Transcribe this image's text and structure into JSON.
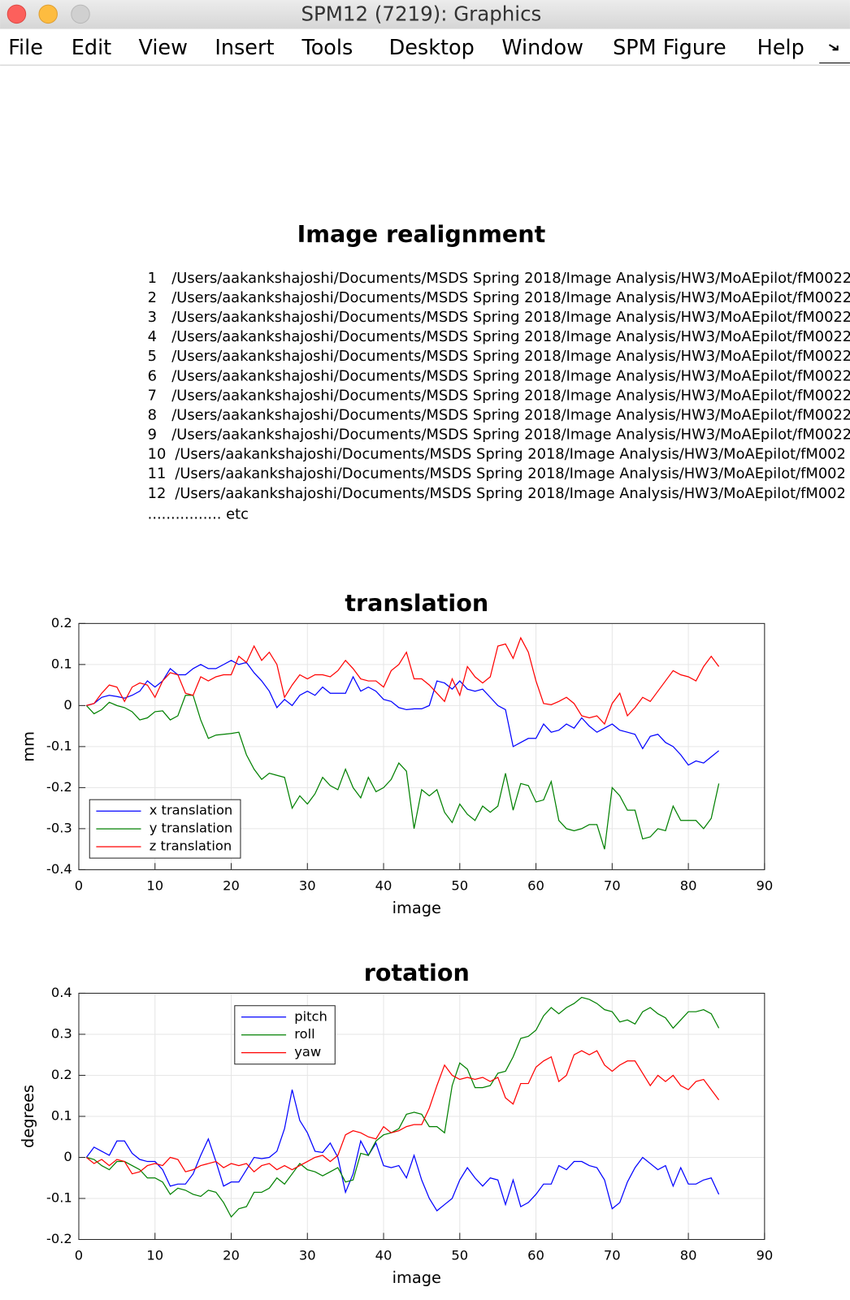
{
  "window": {
    "title": "SPM12 (7219): Graphics"
  },
  "menu": [
    "File",
    "Edit",
    "View",
    "Insert",
    "Tools",
    "Desktop",
    "Window",
    "SPM Figure",
    "Help"
  ],
  "report": {
    "title": "Image realignment",
    "files": [
      {
        "index": 1,
        "path": "/Users/aakankshajoshi/Documents/MSDS Spring 2018/Image Analysis/HW3/MoAEpilot/fM0022"
      },
      {
        "index": 2,
        "path": "/Users/aakankshajoshi/Documents/MSDS Spring 2018/Image Analysis/HW3/MoAEpilot/fM0022"
      },
      {
        "index": 3,
        "path": "/Users/aakankshajoshi/Documents/MSDS Spring 2018/Image Analysis/HW3/MoAEpilot/fM0022"
      },
      {
        "index": 4,
        "path": "/Users/aakankshajoshi/Documents/MSDS Spring 2018/Image Analysis/HW3/MoAEpilot/fM0022"
      },
      {
        "index": 5,
        "path": "/Users/aakankshajoshi/Documents/MSDS Spring 2018/Image Analysis/HW3/MoAEpilot/fM0022"
      },
      {
        "index": 6,
        "path": "/Users/aakankshajoshi/Documents/MSDS Spring 2018/Image Analysis/HW3/MoAEpilot/fM0022"
      },
      {
        "index": 7,
        "path": "/Users/aakankshajoshi/Documents/MSDS Spring 2018/Image Analysis/HW3/MoAEpilot/fM0022"
      },
      {
        "index": 8,
        "path": "/Users/aakankshajoshi/Documents/MSDS Spring 2018/Image Analysis/HW3/MoAEpilot/fM0022"
      },
      {
        "index": 9,
        "path": "/Users/aakankshajoshi/Documents/MSDS Spring 2018/Image Analysis/HW3/MoAEpilot/fM0022"
      },
      {
        "index": 10,
        "path": "/Users/aakankshajoshi/Documents/MSDS Spring 2018/Image Analysis/HW3/MoAEpilot/fM002"
      },
      {
        "index": 11,
        "path": "/Users/aakankshajoshi/Documents/MSDS Spring 2018/Image Analysis/HW3/MoAEpilot/fM002"
      },
      {
        "index": 12,
        "path": "/Users/aakankshajoshi/Documents/MSDS Spring 2018/Image Analysis/HW3/MoAEpilot/fM002"
      }
    ],
    "etc": "................ etc"
  },
  "chart_data": [
    {
      "type": "line",
      "title": "translation",
      "x_label": "image",
      "y_label": "mm",
      "x": [
        1,
        2,
        3,
        4,
        5,
        6,
        7,
        8,
        9,
        10,
        11,
        12,
        13,
        14,
        15,
        16,
        17,
        18,
        19,
        20,
        21,
        22,
        23,
        24,
        25,
        26,
        27,
        28,
        29,
        30,
        31,
        32,
        33,
        34,
        35,
        36,
        37,
        38,
        39,
        40,
        41,
        42,
        43,
        44,
        45,
        46,
        47,
        48,
        49,
        50,
        51,
        52,
        53,
        54,
        55,
        56,
        57,
        58,
        59,
        60,
        61,
        62,
        63,
        64,
        65,
        66,
        67,
        68,
        69,
        70,
        71,
        72,
        73,
        74,
        75,
        76,
        77,
        78,
        79,
        80,
        81,
        82,
        83,
        84
      ],
      "xlim": [
        0,
        90
      ],
      "xticks": [
        0,
        10,
        20,
        30,
        40,
        50,
        60,
        70,
        80,
        90
      ],
      "ylim": [
        -0.4,
        0.2
      ],
      "yticks": [
        -0.4,
        -0.3,
        -0.2,
        -0.1,
        0,
        0.1,
        0.2
      ],
      "grid": true,
      "legend": "lower left",
      "series": [
        {
          "name": "x translation",
          "color": "#0000ff",
          "values": [
            0,
            0.005,
            0.02,
            0.025,
            0.022,
            0.018,
            0.025,
            0.035,
            0.06,
            0.045,
            0.06,
            0.09,
            0.075,
            0.075,
            0.09,
            0.1,
            0.09,
            0.09,
            0.1,
            0.11,
            0.1,
            0.105,
            0.08,
            0.06,
            0.035,
            -0.005,
            0.015,
            0,
            0.025,
            0.035,
            0.025,
            0.045,
            0.03,
            0.03,
            0.03,
            0.07,
            0.035,
            0.045,
            0.035,
            0.015,
            0.01,
            -0.005,
            -0.01,
            -0.008,
            -0.008,
            0,
            0.06,
            0.055,
            0.04,
            0.06,
            0.04,
            0.035,
            0.04,
            0.02,
            0,
            -0.01,
            -0.1,
            -0.09,
            -0.08,
            -0.08,
            -0.045,
            -0.065,
            -0.06,
            -0.045,
            -0.055,
            -0.03,
            -0.05,
            -0.065,
            -0.055,
            -0.045,
            -0.06,
            -0.065,
            -0.07,
            -0.105,
            -0.075,
            -0.07,
            -0.09,
            -0.1,
            -0.12,
            -0.145,
            -0.135,
            -0.14,
            -0.125,
            -0.11
          ]
        },
        {
          "name": "y translation",
          "color": "#008000",
          "values": [
            0,
            -0.02,
            -0.01,
            0.008,
            0,
            -0.005,
            -0.015,
            -0.035,
            -0.03,
            -0.015,
            -0.013,
            -0.035,
            -0.025,
            0.025,
            0.025,
            -0.035,
            -0.08,
            -0.072,
            -0.07,
            -0.068,
            -0.065,
            -0.12,
            -0.155,
            -0.18,
            -0.165,
            -0.17,
            -0.175,
            -0.25,
            -0.22,
            -0.24,
            -0.215,
            -0.175,
            -0.195,
            -0.205,
            -0.155,
            -0.2,
            -0.225,
            -0.175,
            -0.21,
            -0.2,
            -0.18,
            -0.14,
            -0.16,
            -0.3,
            -0.205,
            -0.22,
            -0.205,
            -0.26,
            -0.285,
            -0.24,
            -0.265,
            -0.28,
            -0.245,
            -0.26,
            -0.245,
            -0.165,
            -0.255,
            -0.19,
            -0.195,
            -0.235,
            -0.23,
            -0.185,
            -0.28,
            -0.3,
            -0.305,
            -0.3,
            -0.29,
            -0.29,
            -0.35,
            -0.2,
            -0.22,
            -0.255,
            -0.255,
            -0.325,
            -0.32,
            -0.3,
            -0.305,
            -0.245,
            -0.28,
            -0.28,
            -0.28,
            -0.3,
            -0.275,
            -0.19
          ]
        },
        {
          "name": "z translation",
          "color": "#ff0000",
          "values": [
            0,
            0.005,
            0.03,
            0.05,
            0.045,
            0.01,
            0.045,
            0.055,
            0.05,
            0.02,
            0.06,
            0.08,
            0.075,
            0.03,
            0.025,
            0.07,
            0.06,
            0.07,
            0.075,
            0.075,
            0.12,
            0.105,
            0.145,
            0.11,
            0.13,
            0.1,
            0.02,
            0.05,
            0.075,
            0.065,
            0.075,
            0.075,
            0.07,
            0.085,
            0.11,
            0.09,
            0.065,
            0.06,
            0.06,
            0.045,
            0.085,
            0.1,
            0.13,
            0.065,
            0.065,
            0.05,
            0.03,
            0.01,
            0.065,
            0.025,
            0.095,
            0.07,
            0.055,
            0.07,
            0.145,
            0.15,
            0.115,
            0.165,
            0.13,
            0.06,
            0.005,
            0.002,
            0.01,
            0.02,
            0.005,
            -0.025,
            -0.03,
            -0.025,
            -0.045,
            0.005,
            0.03,
            -0.025,
            -0.005,
            0.02,
            0.01,
            0.035,
            0.06,
            0.085,
            0.075,
            0.07,
            0.06,
            0.095,
            0.12,
            0.095
          ]
        }
      ]
    },
    {
      "type": "line",
      "title": "rotation",
      "x_label": "image",
      "y_label": "degrees",
      "x": [
        1,
        2,
        3,
        4,
        5,
        6,
        7,
        8,
        9,
        10,
        11,
        12,
        13,
        14,
        15,
        16,
        17,
        18,
        19,
        20,
        21,
        22,
        23,
        24,
        25,
        26,
        27,
        28,
        29,
        30,
        31,
        32,
        33,
        34,
        35,
        36,
        37,
        38,
        39,
        40,
        41,
        42,
        43,
        44,
        45,
        46,
        47,
        48,
        49,
        50,
        51,
        52,
        53,
        54,
        55,
        56,
        57,
        58,
        59,
        60,
        61,
        62,
        63,
        64,
        65,
        66,
        67,
        68,
        69,
        70,
        71,
        72,
        73,
        74,
        75,
        76,
        77,
        78,
        79,
        80,
        81,
        82,
        83,
        84
      ],
      "xlim": [
        0,
        90
      ],
      "xticks": [
        0,
        10,
        20,
        30,
        40,
        50,
        60,
        70,
        80,
        90
      ],
      "ylim": [
        -0.2,
        0.4
      ],
      "yticks": [
        -0.2,
        -0.1,
        0,
        0.1,
        0.2,
        0.3,
        0.4
      ],
      "grid": true,
      "legend": "upper left",
      "series": [
        {
          "name": "pitch",
          "color": "#0000ff",
          "values": [
            0,
            0.025,
            0.015,
            0.005,
            0.04,
            0.04,
            0.01,
            -0.005,
            -0.01,
            -0.01,
            -0.03,
            -0.07,
            -0.065,
            -0.065,
            -0.04,
            0.005,
            0.045,
            -0.01,
            -0.07,
            -0.06,
            -0.06,
            -0.03,
            0,
            -0.003,
            0,
            0.015,
            0.07,
            0.165,
            0.09,
            0.06,
            0.015,
            0.012,
            0.035,
            0,
            -0.085,
            -0.04,
            0.04,
            0.005,
            0.035,
            -0.02,
            -0.025,
            -0.02,
            -0.05,
            0.005,
            -0.055,
            -0.1,
            -0.13,
            -0.115,
            -0.1,
            -0.055,
            -0.025,
            -0.05,
            -0.07,
            -0.05,
            -0.055,
            -0.115,
            -0.055,
            -0.12,
            -0.11,
            -0.09,
            -0.065,
            -0.065,
            -0.02,
            -0.03,
            -0.01,
            -0.01,
            -0.02,
            -0.025,
            -0.055,
            -0.125,
            -0.11,
            -0.06,
            -0.025,
            0,
            -0.015,
            -0.03,
            -0.02,
            -0.07,
            -0.025,
            -0.065,
            -0.065,
            -0.055,
            -0.05,
            -0.09
          ]
        },
        {
          "name": "roll",
          "color": "#008000",
          "values": [
            0,
            -0.005,
            -0.02,
            -0.03,
            -0.01,
            -0.01,
            -0.02,
            -0.03,
            -0.05,
            -0.05,
            -0.06,
            -0.09,
            -0.075,
            -0.08,
            -0.09,
            -0.095,
            -0.08,
            -0.085,
            -0.11,
            -0.145,
            -0.125,
            -0.12,
            -0.085,
            -0.085,
            -0.075,
            -0.05,
            -0.065,
            -0.04,
            -0.015,
            -0.03,
            -0.035,
            -0.045,
            -0.035,
            -0.025,
            -0.06,
            -0.055,
            0.01,
            0.005,
            0.04,
            0.055,
            0.06,
            0.07,
            0.105,
            0.11,
            0.105,
            0.075,
            0.075,
            0.06,
            0.175,
            0.23,
            0.215,
            0.17,
            0.17,
            0.175,
            0.205,
            0.21,
            0.245,
            0.29,
            0.295,
            0.31,
            0.345,
            0.365,
            0.35,
            0.365,
            0.375,
            0.39,
            0.385,
            0.375,
            0.36,
            0.355,
            0.33,
            0.335,
            0.325,
            0.355,
            0.365,
            0.35,
            0.34,
            0.315,
            0.335,
            0.355,
            0.355,
            0.36,
            0.35,
            0.315
          ]
        },
        {
          "name": "yaw",
          "color": "#ff0000",
          "values": [
            0,
            -0.015,
            -0.005,
            -0.02,
            -0.005,
            -0.01,
            -0.04,
            -0.035,
            -0.02,
            -0.015,
            -0.02,
            0,
            -0.005,
            -0.035,
            -0.03,
            -0.02,
            -0.015,
            -0.01,
            -0.025,
            -0.015,
            -0.02,
            -0.015,
            -0.035,
            -0.02,
            -0.015,
            -0.03,
            -0.02,
            -0.03,
            -0.02,
            -0.01,
            0,
            0.005,
            -0.01,
            0.005,
            0.055,
            0.065,
            0.06,
            0.05,
            0.045,
            0.075,
            0.06,
            0.065,
            0.075,
            0.08,
            0.08,
            0.12,
            0.175,
            0.225,
            0.2,
            0.19,
            0.195,
            0.19,
            0.195,
            0.185,
            0.195,
            0.145,
            0.13,
            0.18,
            0.18,
            0.22,
            0.235,
            0.245,
            0.185,
            0.2,
            0.25,
            0.26,
            0.25,
            0.26,
            0.225,
            0.21,
            0.225,
            0.235,
            0.235,
            0.205,
            0.175,
            0.2,
            0.185,
            0.2,
            0.175,
            0.165,
            0.185,
            0.19,
            0.165,
            0.14
          ]
        }
      ]
    }
  ]
}
